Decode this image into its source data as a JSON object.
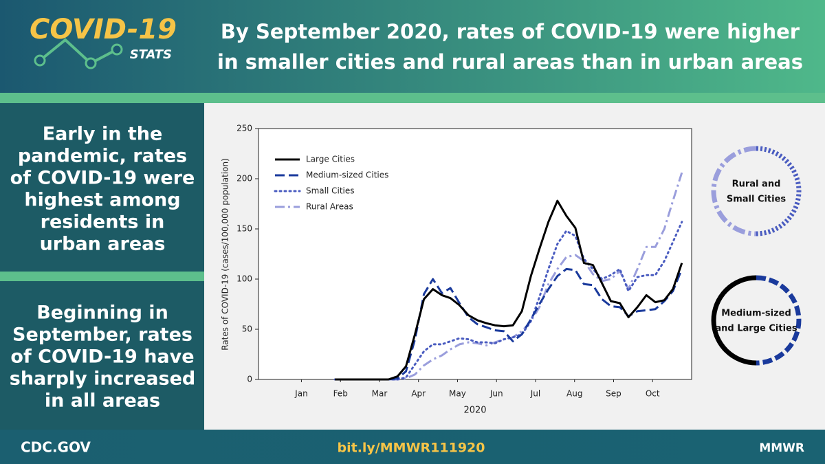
{
  "header": {
    "logo_title": "COVID-19",
    "logo_subtitle": "STATS",
    "title": [
      "By September 2020, rates of COVID-19 were higher",
      "in smaller cities and rural areas than in urban areas"
    ]
  },
  "left_panel": {
    "top": [
      "Early in the",
      "pandemic, rates",
      "of COVID-19 were",
      "highest among",
      "residents in",
      "urban areas"
    ],
    "bottom": [
      "Beginning in",
      "September, rates",
      "of COVID-19 have",
      "sharply increased",
      "in all areas"
    ]
  },
  "callouts": [
    {
      "lines": [
        "Rural and",
        "Small Cities"
      ]
    },
    {
      "lines": [
        "Medium-sized",
        "and Large Cities"
      ]
    }
  ],
  "chart_data": {
    "type": "line",
    "y_label": "Rates of COVID-19 (cases/100,000 population)",
    "x_label": "2020",
    "xlim": [
      -0.1,
      11
    ],
    "xticks": [
      {
        "value": 1,
        "label": "Jan"
      },
      {
        "value": 2,
        "label": "Feb"
      },
      {
        "value": 3,
        "label": "Mar"
      },
      {
        "value": 4,
        "label": "Apr"
      },
      {
        "value": 5,
        "label": "May"
      },
      {
        "value": 6,
        "label": "Jun"
      },
      {
        "value": 7,
        "label": "Jul"
      },
      {
        "value": 8,
        "label": "Aug"
      },
      {
        "value": 9,
        "label": "Sep"
      },
      {
        "value": 10,
        "label": "Oct"
      }
    ],
    "ylim": [
      0,
      250
    ],
    "yticks": [
      0,
      50,
      100,
      150,
      200,
      250
    ],
    "legend": "upper left",
    "x": [
      1.86,
      2.09,
      2.32,
      2.54,
      2.77,
      3.0,
      3.23,
      3.46,
      3.68,
      3.91,
      4.14,
      4.37,
      4.6,
      4.82,
      5.05,
      5.28,
      5.51,
      5.74,
      5.96,
      6.19,
      6.42,
      6.65,
      6.88,
      7.1,
      7.33,
      7.56,
      7.79,
      8.02,
      8.24,
      8.47,
      8.7,
      8.93,
      9.16,
      9.38,
      9.61,
      9.84,
      10.07,
      10.3,
      10.52,
      10.75
    ],
    "series": [
      {
        "name": "Large Cities",
        "color": "#000000",
        "dash": "solid",
        "values": [
          0,
          0,
          0,
          0,
          0,
          0,
          0,
          3,
          13,
          45,
          80,
          90,
          84,
          81,
          74,
          64,
          59,
          56,
          54,
          53,
          54,
          68,
          103,
          130,
          157,
          178,
          163,
          151,
          116,
          114,
          96,
          78,
          76,
          62,
          72,
          84,
          77,
          79,
          90,
          116
        ]
      },
      {
        "name": "Medium-sized Cities",
        "color": "#1a3a9c",
        "dash": "dashed",
        "values": [
          0,
          0,
          0,
          0,
          0,
          0,
          0,
          1,
          8,
          40,
          85,
          100,
          86,
          91,
          76,
          62,
          55,
          52,
          49,
          48,
          38,
          45,
          60,
          75,
          90,
          103,
          110,
          109,
          95,
          94,
          80,
          73,
          72,
          63,
          68,
          69,
          70,
          78,
          88,
          110
        ]
      },
      {
        "name": "Small Cities",
        "color": "#4a5cc0",
        "dash": "dotted",
        "values": [
          0,
          0,
          0,
          0,
          0,
          0,
          0,
          0,
          2,
          15,
          28,
          35,
          35,
          38,
          41,
          40,
          37,
          37,
          36,
          40,
          42,
          45,
          58,
          82,
          110,
          135,
          148,
          143,
          120,
          110,
          100,
          104,
          110,
          88,
          102,
          104,
          104,
          118,
          137,
          157
        ]
      },
      {
        "name": "Rural Areas",
        "color": "#9a9edc",
        "dash": "dashdot",
        "values": [
          0,
          0,
          0,
          0,
          0,
          0,
          0,
          0,
          1,
          5,
          14,
          20,
          24,
          30,
          35,
          37,
          36,
          34,
          37,
          40,
          42,
          48,
          58,
          72,
          95,
          110,
          122,
          124,
          118,
          105,
          98,
          100,
          108,
          90,
          110,
          132,
          132,
          150,
          178,
          206
        ]
      }
    ]
  },
  "footer": {
    "left": "CDC.GOV",
    "center": "bit.ly/MMWR111920",
    "right": "MMWR"
  }
}
